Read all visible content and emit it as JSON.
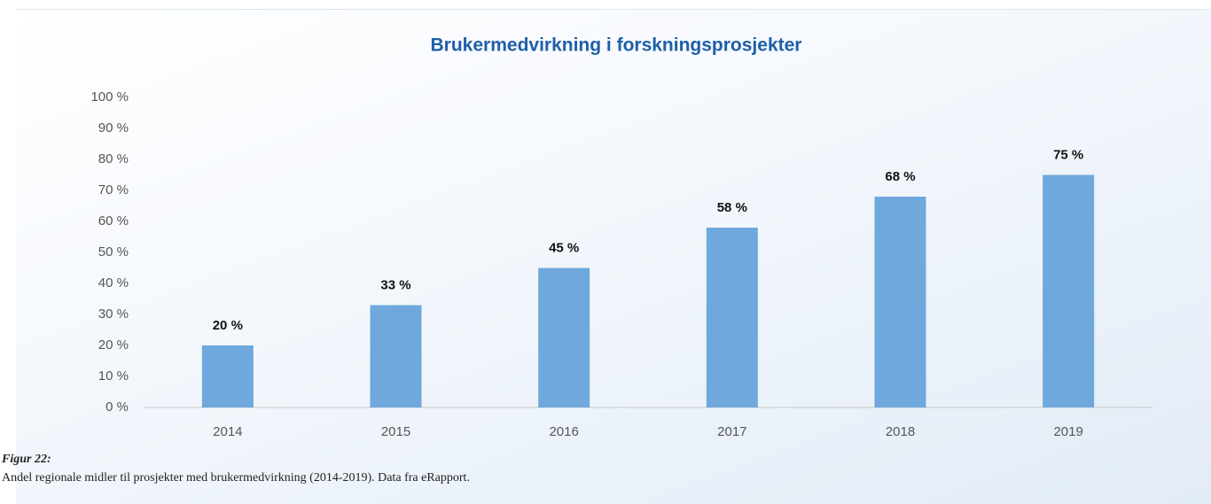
{
  "chart_data": {
    "type": "bar",
    "title": "Brukermedvirkning i forskningsprosjekter",
    "categories": [
      "2014",
      "2015",
      "2016",
      "2017",
      "2018",
      "2019"
    ],
    "values": [
      20,
      33,
      45,
      58,
      68,
      75
    ],
    "value_labels": [
      "20 %",
      "33 %",
      "45 %",
      "58 %",
      "68 %",
      "75 %"
    ],
    "color": "#6fa8dc",
    "ylim": [
      0,
      100
    ],
    "yticks": [
      {
        "value": 0,
        "label": "0 %"
      },
      {
        "value": 10,
        "label": "10 %"
      },
      {
        "value": 20,
        "label": "20 %"
      },
      {
        "value": 30,
        "label": "30 %"
      },
      {
        "value": 40,
        "label": "40 %"
      },
      {
        "value": 50,
        "label": "50 %"
      },
      {
        "value": 60,
        "label": "60 %"
      },
      {
        "value": 70,
        "label": "70 %"
      },
      {
        "value": 80,
        "label": "80 %"
      },
      {
        "value": 90,
        "label": "90 %"
      },
      {
        "value": 100,
        "label": "100 %"
      }
    ],
    "grid": false
  },
  "caption": {
    "label": "Figur 22:",
    "text": "Andel regionale midler til prosjekter med brukermedvirkning (2014-2019). Data fra eRapport."
  }
}
